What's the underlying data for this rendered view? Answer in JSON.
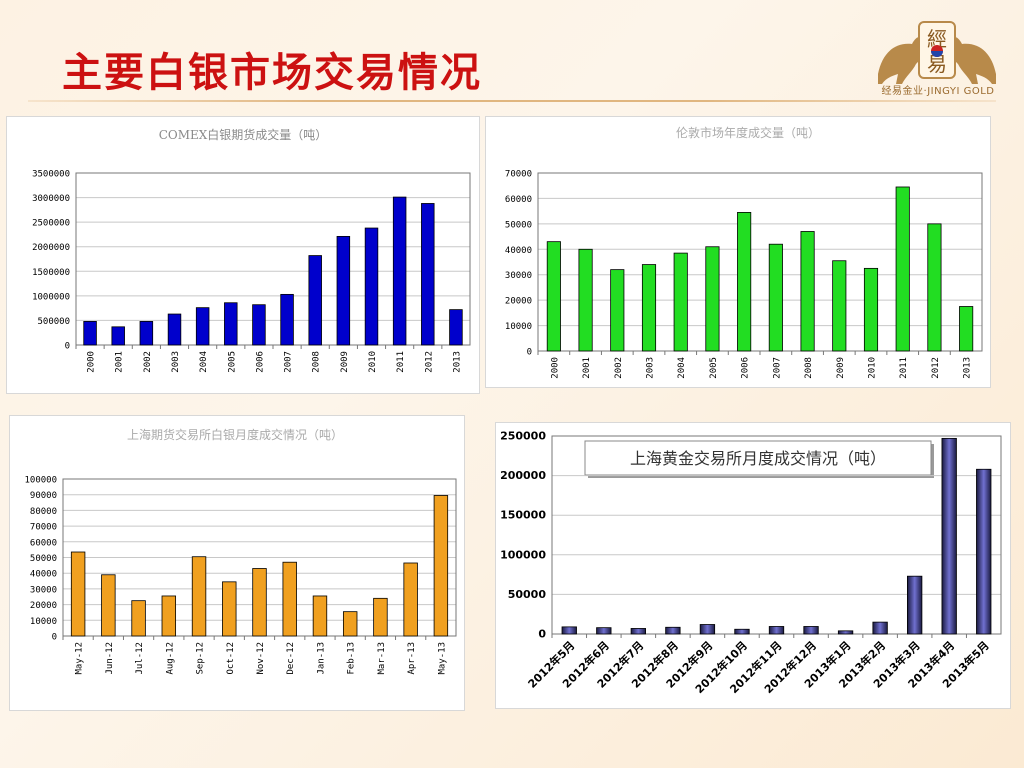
{
  "page": {
    "title": "主要白银市场交易情况"
  },
  "logo": {
    "caption": "经易金业·JINGYI GOLD",
    "glyph_top": "經",
    "glyph_bottom": "易"
  },
  "chart_data": [
    {
      "id": "comex",
      "type": "bar",
      "title": "COMEX白银期货成交量（吨）",
      "categories": [
        "2000",
        "2001",
        "2002",
        "2003",
        "2004",
        "2005",
        "2006",
        "2007",
        "2008",
        "2009",
        "2010",
        "2011",
        "2012",
        "2013"
      ],
      "values": [
        480000,
        370000,
        480000,
        630000,
        760000,
        860000,
        820000,
        1030000,
        1820000,
        2210000,
        2380000,
        3010000,
        2880000,
        720000
      ],
      "ylim": [
        0,
        3500000
      ],
      "yticks": [
        0,
        500000,
        1000000,
        1500000,
        2000000,
        2500000,
        3000000,
        3500000
      ],
      "color": "#0000cc",
      "grid": true
    },
    {
      "id": "london",
      "type": "bar",
      "title": "伦敦市场年度成交量（吨）",
      "categories": [
        "2000",
        "2001",
        "2002",
        "2003",
        "2004",
        "2005",
        "2006",
        "2007",
        "2008",
        "2009",
        "2010",
        "2011",
        "2012",
        "2013"
      ],
      "values": [
        43000,
        40000,
        32000,
        34000,
        38500,
        41000,
        54500,
        42000,
        47000,
        35500,
        32500,
        64500,
        50000,
        17500
      ],
      "ylim": [
        0,
        70000
      ],
      "yticks": [
        0,
        10000,
        20000,
        30000,
        40000,
        50000,
        60000,
        70000
      ],
      "color": "#22dd22",
      "grid": true
    },
    {
      "id": "shfe",
      "type": "bar",
      "title": "上海期货交易所白银月度成交情况（吨）",
      "categories": [
        "May-12",
        "Jun-12",
        "Jul-12",
        "Aug-12",
        "Sep-12",
        "Oct-12",
        "Nov-12",
        "Dec-12",
        "Jan-13",
        "Feb-13",
        "Mar-13",
        "Apr-13",
        "May-13"
      ],
      "values": [
        53500,
        39000,
        22500,
        25500,
        50500,
        34500,
        43000,
        47000,
        25500,
        15500,
        24000,
        46500,
        89500
      ],
      "ylim": [
        0,
        100000
      ],
      "yticks": [
        0,
        10000,
        20000,
        30000,
        40000,
        50000,
        60000,
        70000,
        80000,
        90000,
        100000
      ],
      "color": "#f0a020",
      "grid": true
    },
    {
      "id": "sge",
      "type": "bar",
      "title": "上海黄金交易所月度成交情况（吨）",
      "categories": [
        "2012年5月",
        "2012年6月",
        "2012年7月",
        "2012年8月",
        "2012年9月",
        "2012年10月",
        "2012年11月",
        "2012年12月",
        "2013年1月",
        "2013年2月",
        "2013年3月",
        "2013年4月",
        "2013年5月"
      ],
      "values": [
        9000,
        8000,
        7000,
        8500,
        12000,
        6000,
        9500,
        9500,
        4000,
        15000,
        73000,
        247000,
        208000
      ],
      "ylim": [
        0,
        250000
      ],
      "yticks": [
        0,
        50000,
        100000,
        150000,
        200000,
        250000
      ],
      "color": "#7070d0",
      "grid": true
    }
  ]
}
